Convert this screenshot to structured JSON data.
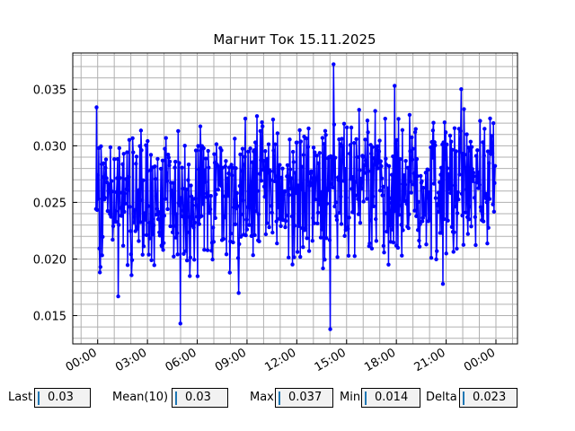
{
  "chart_data": {
    "type": "line",
    "title": "Магнит Ток 15.11.2025",
    "xlabel": "",
    "ylabel": "",
    "x_ticks": [
      "00:00",
      "03:00",
      "06:00",
      "09:00",
      "12:00",
      "15:00",
      "18:00",
      "21:00",
      "00:00"
    ],
    "x_tick_hours": [
      0,
      3,
      6,
      9,
      12,
      15,
      18,
      21,
      24
    ],
    "xlim_hours": [
      -1.5,
      25.3
    ],
    "y_ticks": [
      "0.015",
      "0.020",
      "0.025",
      "0.030",
      "0.035"
    ],
    "y_tick_values": [
      0.015,
      0.02,
      0.025,
      0.03,
      0.035
    ],
    "ylim": [
      0.0125,
      0.0382
    ],
    "grid": true,
    "series_color": "#0000ff",
    "series": [
      {
        "name": "",
        "x_range_hours": [
          -0.1,
          23.95
        ],
        "point_count": 720,
        "values_summary": {
          "max": 0.0372,
          "min": 0.0138,
          "mean_approx": 0.026
        },
        "highlights": [
          {
            "hour": -0.05,
            "value": 0.0334
          },
          {
            "hour": 1.25,
            "value": 0.0167
          },
          {
            "hour": 5.0,
            "value": 0.0143
          },
          {
            "hour": 8.5,
            "value": 0.017
          },
          {
            "hour": 14.0,
            "value": 0.0138
          },
          {
            "hour": 14.2,
            "value": 0.0372
          },
          {
            "hour": 17.9,
            "value": 0.0353
          },
          {
            "hour": 20.8,
            "value": 0.0178
          },
          {
            "hour": 21.9,
            "value": 0.035
          },
          {
            "hour": 23.85,
            "value": 0.032
          }
        ]
      }
    ]
  },
  "stats": [
    {
      "label": "Last",
      "value": "0.03"
    },
    {
      "label": "Mean(10)",
      "value": "0.03"
    },
    {
      "label": "Max",
      "value": "0.037"
    },
    {
      "label": "Min",
      "value": "0.014"
    },
    {
      "label": "Delta",
      "value": "0.023"
    }
  ]
}
